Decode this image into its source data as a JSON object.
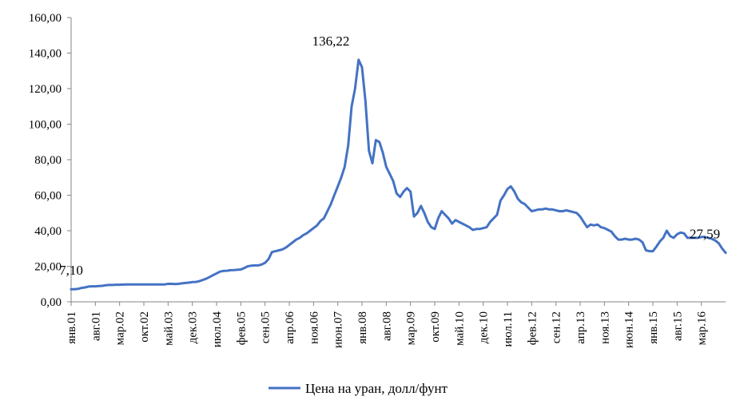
{
  "chart_data": {
    "type": "line",
    "title": "",
    "xlabel": "",
    "ylabel": "",
    "ylim": [
      0,
      160
    ],
    "y_ticks": [
      "0,00",
      "20,00",
      "40,00",
      "60,00",
      "80,00",
      "100,00",
      "120,00",
      "140,00",
      "160,00"
    ],
    "x_tick_labels": [
      "янв.01",
      "авг.01",
      "мар.02",
      "окт.02",
      "май.03",
      "дек.03",
      "июл.04",
      "фев.05",
      "сен.05",
      "апр.06",
      "ноя.06",
      "июн.07",
      "янв.08",
      "авг.08",
      "мар.09",
      "окт.09",
      "май.10",
      "дек.10",
      "июл.11",
      "фев.12",
      "сен.12",
      "апр.13",
      "ноя.13",
      "июн.14",
      "янв.15",
      "авг.15",
      "мар.16"
    ],
    "grid": false,
    "legend_position": "bottom",
    "color": "#4472C4",
    "series": [
      {
        "name": "Цена на уран, долл/фунт",
        "x_start": "янв.01",
        "step_months": 1,
        "values": [
          7.1,
          7.1,
          7.3,
          7.8,
          8.1,
          8.6,
          8.7,
          8.7,
          8.9,
          9.0,
          9.3,
          9.5,
          9.5,
          9.6,
          9.6,
          9.7,
          9.8,
          9.8,
          9.8,
          9.8,
          9.8,
          9.8,
          9.8,
          9.8,
          9.8,
          9.8,
          9.8,
          9.8,
          10.1,
          10.1,
          10.0,
          10.1,
          10.4,
          10.6,
          10.8,
          11.1,
          11.2,
          11.6,
          12.3,
          13.0,
          14.0,
          15.0,
          16.0,
          17.0,
          17.4,
          17.5,
          17.8,
          17.9,
          18.0,
          18.2,
          19.0,
          20.0,
          20.3,
          20.5,
          20.5,
          21.0,
          22.0,
          24.0,
          28.0,
          28.5,
          29.0,
          29.5,
          30.5,
          32.0,
          33.5,
          35.0,
          36.0,
          37.5,
          38.5,
          40.0,
          41.5,
          43.0,
          45.5,
          47.0,
          51.0,
          55.0,
          60.0,
          65.0,
          70.0,
          76.0,
          88.0,
          110.0,
          120.0,
          136.22,
          132.0,
          113.0,
          85.0,
          78.0,
          91.0,
          90.0,
          84.0,
          76.0,
          72.0,
          68.0,
          61.0,
          59.0,
          62.0,
          64.0,
          62.0,
          48.0,
          50.0,
          54.0,
          50.0,
          45.0,
          42.0,
          41.0,
          47.0,
          51.0,
          49.0,
          47.0,
          44.0,
          46.0,
          45.0,
          44.0,
          43.0,
          42.0,
          40.5,
          41.0,
          41.0,
          41.5,
          42.0,
          45.0,
          47.0,
          49.0,
          57.0,
          60.0,
          63.5,
          65.0,
          62.0,
          58.0,
          56.0,
          55.0,
          53.0,
          51.0,
          51.5,
          52.0,
          52.0,
          52.5,
          52.0,
          52.0,
          51.5,
          51.0,
          51.0,
          51.5,
          51.0,
          50.5,
          50.0,
          48.0,
          45.0,
          42.0,
          43.5,
          43.0,
          43.5,
          42.0,
          41.5,
          40.5,
          39.5,
          37.0,
          35.0,
          35.0,
          35.5,
          35.0,
          35.0,
          35.5,
          35.0,
          33.5,
          29.0,
          28.5,
          28.5,
          31.0,
          34.0,
          36.0,
          40.0,
          37.0,
          36.0,
          38.0,
          39.0,
          38.5,
          36.0,
          36.0,
          36.0,
          36.0,
          36.5,
          36.5,
          36.0,
          35.5,
          34.5,
          33.0,
          30.0,
          27.59
        ]
      }
    ],
    "annotations": [
      {
        "text": "7,10",
        "x": "янв.01",
        "y": 7.1
      },
      {
        "text": "136,22",
        "x": "апр.07",
        "y": 136.22
      },
      {
        "text": "27,59",
        "x": "апр.16",
        "y": 27.59
      }
    ]
  }
}
